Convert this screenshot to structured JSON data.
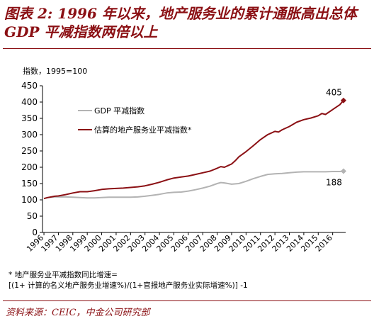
{
  "header": {
    "title": "图表 2: 1996 年以来，地产服务业的累计通胀高出总体 GDP 平减指数两倍以上"
  },
  "chart_data": {
    "type": "line",
    "ylabel": "指数，1995=100",
    "ylim": [
      0,
      450
    ],
    "yticks": [
      0,
      50,
      100,
      150,
      200,
      250,
      300,
      350,
      400,
      450
    ],
    "xlim": [
      1995.9,
      2016.9
    ],
    "xticks": [
      "1996",
      "1997",
      "1998",
      "1999",
      "2000",
      "2001",
      "2002",
      "2003",
      "2004",
      "2005",
      "2006",
      "2007",
      "2008",
      "2009",
      "2010",
      "2011",
      "2012",
      "2013",
      "2014",
      "2015",
      "2016"
    ],
    "grid": false,
    "legend_position": "top-left",
    "series": [
      {
        "name": "GDP 平减指数",
        "color": "#b3b3b3",
        "end_label": "188",
        "points": [
          [
            1996.0,
            104
          ],
          [
            1996.25,
            107
          ],
          [
            1996.5,
            108
          ],
          [
            1996.75,
            109
          ],
          [
            1997.0,
            109
          ],
          [
            1997.5,
            109
          ],
          [
            1998.0,
            108
          ],
          [
            1998.5,
            107
          ],
          [
            1999.0,
            106
          ],
          [
            1999.5,
            106
          ],
          [
            2000.0,
            107
          ],
          [
            2000.5,
            108
          ],
          [
            2001.0,
            108
          ],
          [
            2001.5,
            108
          ],
          [
            2002.0,
            108
          ],
          [
            2002.5,
            109
          ],
          [
            2003.0,
            111
          ],
          [
            2003.5,
            114
          ],
          [
            2004.0,
            117
          ],
          [
            2004.5,
            121
          ],
          [
            2005.0,
            123
          ],
          [
            2005.5,
            124
          ],
          [
            2006.0,
            127
          ],
          [
            2006.5,
            131
          ],
          [
            2007.0,
            136
          ],
          [
            2007.5,
            142
          ],
          [
            2008.0,
            150
          ],
          [
            2008.25,
            153
          ],
          [
            2008.5,
            152
          ],
          [
            2008.75,
            150
          ],
          [
            2009.0,
            148
          ],
          [
            2009.5,
            150
          ],
          [
            2010.0,
            157
          ],
          [
            2010.5,
            165
          ],
          [
            2011.0,
            172
          ],
          [
            2011.5,
            178
          ],
          [
            2012.0,
            180
          ],
          [
            2012.5,
            181
          ],
          [
            2013.0,
            183
          ],
          [
            2013.5,
            185
          ],
          [
            2014.0,
            186
          ],
          [
            2014.5,
            186
          ],
          [
            2015.0,
            186
          ],
          [
            2015.5,
            186
          ],
          [
            2016.0,
            187
          ],
          [
            2016.5,
            187
          ],
          [
            2016.75,
            188
          ]
        ]
      },
      {
        "name": "估算的地产服务业平减指数*",
        "color": "#8b1014",
        "end_label": "405",
        "points": [
          [
            1996.0,
            104
          ],
          [
            1996.25,
            107
          ],
          [
            1996.5,
            109
          ],
          [
            1996.75,
            111
          ],
          [
            1997.0,
            112
          ],
          [
            1997.5,
            116
          ],
          [
            1998.0,
            121
          ],
          [
            1998.5,
            125
          ],
          [
            1999.0,
            125
          ],
          [
            1999.5,
            128
          ],
          [
            2000.0,
            132
          ],
          [
            2000.5,
            134
          ],
          [
            2001.0,
            135
          ],
          [
            2001.5,
            136
          ],
          [
            2002.0,
            138
          ],
          [
            2002.5,
            140
          ],
          [
            2003.0,
            143
          ],
          [
            2003.5,
            148
          ],
          [
            2004.0,
            154
          ],
          [
            2004.5,
            161
          ],
          [
            2005.0,
            167
          ],
          [
            2005.5,
            170
          ],
          [
            2006.0,
            173
          ],
          [
            2006.5,
            178
          ],
          [
            2007.0,
            183
          ],
          [
            2007.5,
            188
          ],
          [
            2008.0,
            197
          ],
          [
            2008.25,
            202
          ],
          [
            2008.5,
            200
          ],
          [
            2008.75,
            205
          ],
          [
            2009.0,
            210
          ],
          [
            2009.25,
            220
          ],
          [
            2009.5,
            232
          ],
          [
            2010.0,
            248
          ],
          [
            2010.5,
            266
          ],
          [
            2011.0,
            285
          ],
          [
            2011.5,
            300
          ],
          [
            2012.0,
            310
          ],
          [
            2012.25,
            308
          ],
          [
            2012.5,
            315
          ],
          [
            2013.0,
            325
          ],
          [
            2013.5,
            338
          ],
          [
            2014.0,
            346
          ],
          [
            2014.5,
            351
          ],
          [
            2015.0,
            358
          ],
          [
            2015.25,
            365
          ],
          [
            2015.5,
            362
          ],
          [
            2016.0,
            377
          ],
          [
            2016.5,
            392
          ],
          [
            2016.75,
            405
          ]
        ]
      }
    ]
  },
  "note": {
    "line1": "* 地产服务业平减指数同比增速=",
    "line2": "[(1+ 计算的名义地产服务业增速%)/(1+官报地产服务业实际增速%)] -1"
  },
  "source": "资料来源：CEIC，中金公司研究部"
}
